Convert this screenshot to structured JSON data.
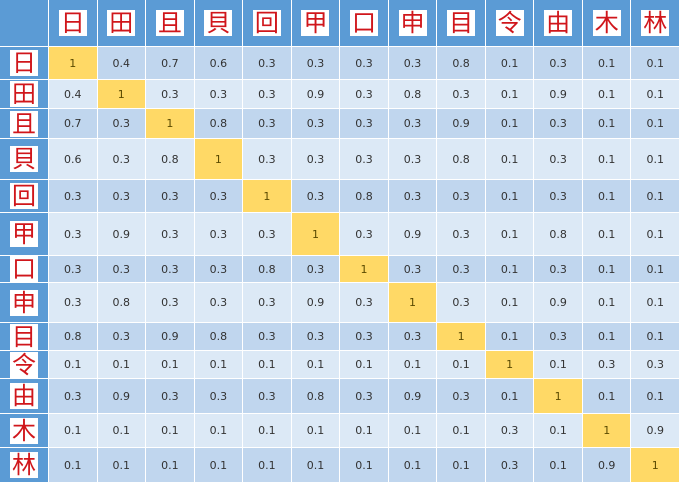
{
  "chart_data": {
    "type": "heatmap",
    "row_labels": [
      "日",
      "田",
      "且",
      "貝",
      "回",
      "甲",
      "口",
      "申",
      "目",
      "令",
      "由",
      "木",
      "林"
    ],
    "col_labels": [
      "日",
      "田",
      "且",
      "貝",
      "回",
      "甲",
      "口",
      "申",
      "目",
      "令",
      "由",
      "木",
      "林"
    ],
    "values": [
      [
        "1",
        "0.4",
        "0.7",
        "0.6",
        "0.3",
        "0.3",
        "0.3",
        "0.3",
        "0.8",
        "0.1",
        "0.3",
        "0.1",
        "0.1"
      ],
      [
        "0.4",
        "1",
        "0.3",
        "0.3",
        "0.3",
        "0.9",
        "0.3",
        "0.8",
        "0.3",
        "0.1",
        "0.9",
        "0.1",
        "0.1"
      ],
      [
        "0.7",
        "0.3",
        "1",
        "0.8",
        "0.3",
        "0.3",
        "0.3",
        "0.3",
        "0.9",
        "0.1",
        "0.3",
        "0.1",
        "0.1"
      ],
      [
        "0.6",
        "0.3",
        "0.8",
        "1",
        "0.3",
        "0.3",
        "0.3",
        "0.3",
        "0.8",
        "0.1",
        "0.3",
        "0.1",
        "0.1"
      ],
      [
        "0.3",
        "0.3",
        "0.3",
        "0.3",
        "1",
        "0.3",
        "0.8",
        "0.3",
        "0.3",
        "0.1",
        "0.3",
        "0.1",
        "0.1"
      ],
      [
        "0.3",
        "0.9",
        "0.3",
        "0.3",
        "0.3",
        "1",
        "0.3",
        "0.9",
        "0.3",
        "0.1",
        "0.8",
        "0.1",
        "0.1"
      ],
      [
        "0.3",
        "0.3",
        "0.3",
        "0.3",
        "0.8",
        "0.3",
        "1",
        "0.3",
        "0.3",
        "0.1",
        "0.3",
        "0.1",
        "0.1"
      ],
      [
        "0.3",
        "0.8",
        "0.3",
        "0.3",
        "0.3",
        "0.9",
        "0.3",
        "1",
        "0.3",
        "0.1",
        "0.9",
        "0.1",
        "0.1"
      ],
      [
        "0.8",
        "0.3",
        "0.9",
        "0.8",
        "0.3",
        "0.3",
        "0.3",
        "0.3",
        "1",
        "0.1",
        "0.3",
        "0.1",
        "0.1"
      ],
      [
        "0.1",
        "0.1",
        "0.1",
        "0.1",
        "0.1",
        "0.1",
        "0.1",
        "0.1",
        "0.1",
        "1",
        "0.1",
        "0.3",
        "0.3"
      ],
      [
        "0.3",
        "0.9",
        "0.3",
        "0.3",
        "0.3",
        "0.8",
        "0.3",
        "0.9",
        "0.3",
        "0.1",
        "1",
        "0.1",
        "0.1"
      ],
      [
        "0.1",
        "0.1",
        "0.1",
        "0.1",
        "0.1",
        "0.1",
        "0.1",
        "0.1",
        "0.1",
        "0.3",
        "0.1",
        "1",
        "0.9"
      ],
      [
        "0.1",
        "0.1",
        "0.1",
        "0.1",
        "0.1",
        "0.1",
        "0.1",
        "0.1",
        "0.1",
        "0.3",
        "0.1",
        "0.9",
        "1"
      ]
    ],
    "colors": {
      "header": "#5b9bd5",
      "diagonal": "#ffd966",
      "row_dark": "#c0d6ee",
      "row_light": "#dce9f6",
      "glyph": "#d0161b"
    }
  }
}
